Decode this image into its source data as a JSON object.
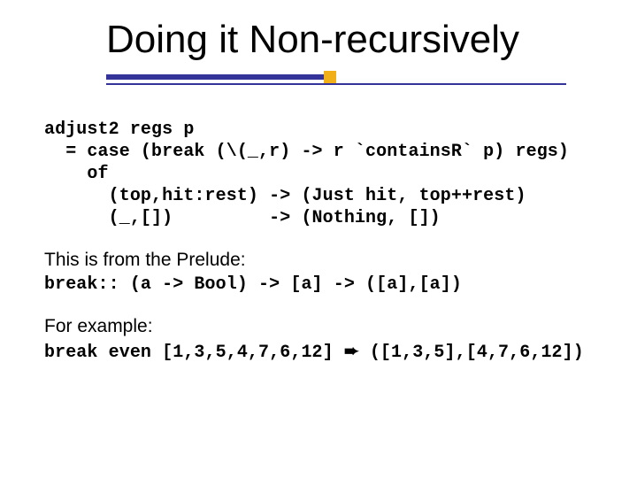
{
  "colors": {
    "rule": "#333399",
    "accent_square": "#f2b018",
    "text": "#000000",
    "background": "#ffffff"
  },
  "typography": {
    "title_family": "Arial",
    "title_size_pt": 33,
    "body_prose_family": "Arial",
    "body_prose_size_pt": 16,
    "code_family": "Courier New",
    "code_size_pt": 15,
    "code_weight": "bold"
  },
  "title": "Doing it Non-recursively",
  "code_block_1": "adjust2 regs p\n  = case (break (\\(_,r) -> r `containsR` p) regs)\n    of\n      (top,hit:rest) -> (Just hit, top++rest)\n      (_,[])         -> (Nothing, [])",
  "prose_1": "This is from the Prelude:",
  "code_line_2": "break:: (a -> Bool) -> [a] -> ([a],[a])",
  "prose_2": "For example:",
  "example_lhs": "break even [1,3,5,4,7,6,12] ",
  "example_arrow": "➨",
  "example_rhs": " ([1,3,5],[4,7,6,12])"
}
